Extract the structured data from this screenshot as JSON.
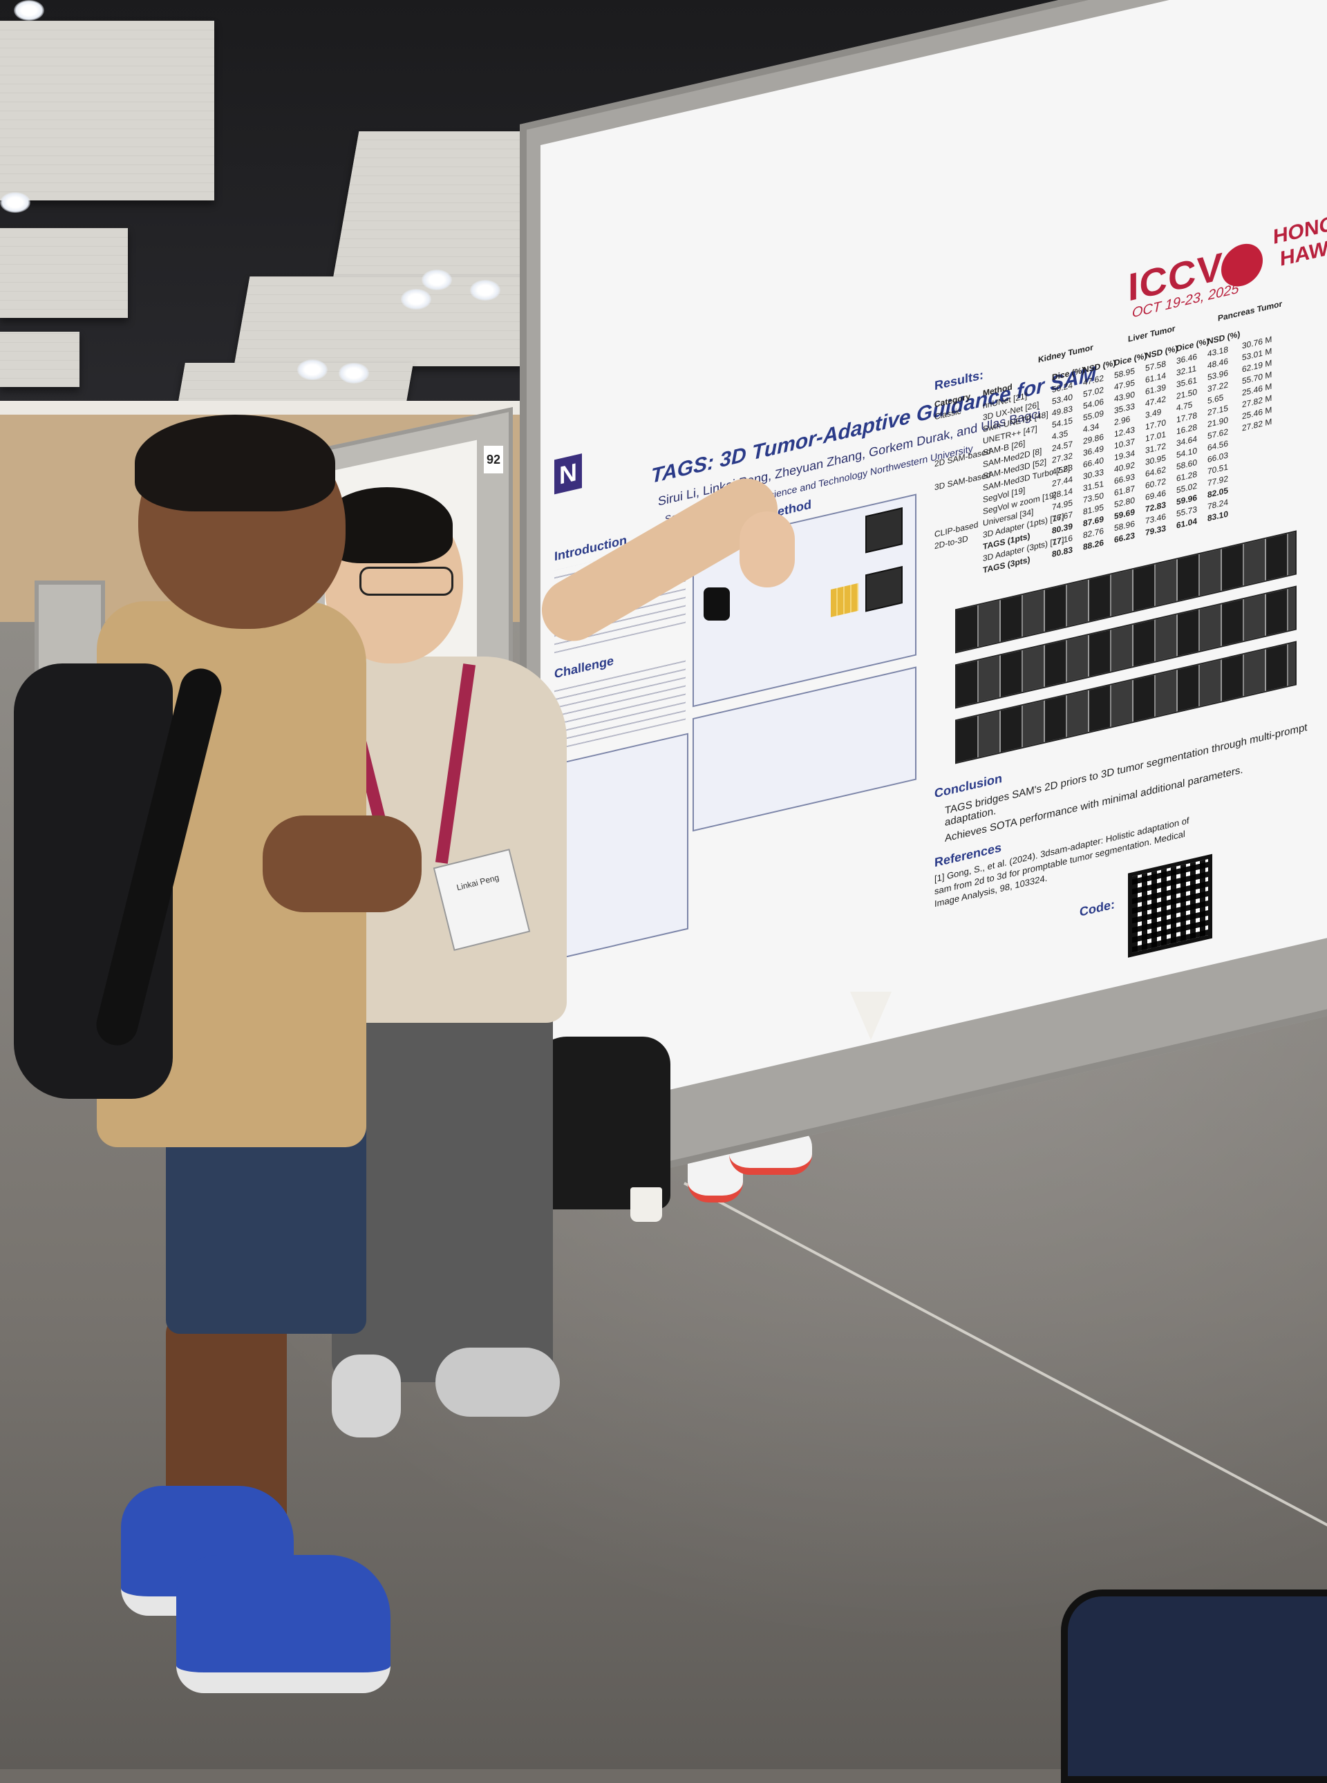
{
  "poster": {
    "title": "TAGS: 3D Tumor-Adaptive Guidance for SAM",
    "authors": "Sirui Li, Linkai Peng, Zheyuan Zhang, Gorkem Durak, and Ulas Bagci",
    "affiliation": "Southern University of Science and Technology  Northwestern University",
    "conference": {
      "logo": "ICCV",
      "dates": "OCT 19-23, 2025",
      "city_line1": "HONOLULU",
      "city_line2": "HAWAII"
    },
    "sections": {
      "introduction": "Introduction",
      "challenge": "Challenge",
      "proposed_method": "Proposed Method",
      "results": "Results:",
      "conclusion": "Conclusion",
      "references": "References",
      "code": "Code:"
    },
    "table": {
      "group_headers": [
        "Kidney Tumor",
        "Liver Tumor",
        "Pancreas Tumor"
      ],
      "columns": [
        "Category",
        "Method",
        "Dice (%)",
        "NSD (%)",
        "Dice (%)",
        "NSD (%)",
        "Dice (%)",
        "NSD (%)"
      ],
      "rows": [
        [
          "Classic",
          "nnUNet [21]",
          "50.24",
          "47.62",
          "58.95",
          "57.58",
          "36.46",
          "43.18"
        ],
        [
          "",
          "3D UX-Net [26]",
          "53.40",
          "57.02",
          "47.95",
          "61.14",
          "32.11",
          "48.46"
        ],
        [
          "",
          "Swin-UNETR [48]",
          "49.83",
          "54.06",
          "43.90",
          "61.39",
          "35.61",
          "53.96"
        ],
        [
          "",
          "UNETR++ [47]",
          "54.15",
          "55.09",
          "35.33",
          "47.42",
          "21.50",
          "37.22"
        ],
        [
          "2D SAM-based",
          "SAM-B [26]",
          "4.35",
          "4.34",
          "2.96",
          "3.49",
          "4.75",
          "5.65"
        ],
        [
          "",
          "SAM-Med2D [8]",
          "24.57",
          "29.86",
          "12.43",
          "17.70",
          "17.78",
          "27.15"
        ],
        [
          "3D SAM-based",
          "SAM-Med3D [52]",
          "27.32",
          "36.49",
          "10.37",
          "17.01",
          "16.28",
          "21.90"
        ],
        [
          "",
          "SAM-Med3D Turbo [52]",
          "47.83",
          "66.40",
          "19.34",
          "31.72",
          "34.64",
          "57.62"
        ],
        [
          "",
          "SegVol [19]",
          "27.44",
          "30.33",
          "40.92",
          "30.95",
          "54.10",
          "64.56"
        ],
        [
          "",
          "SegVol w zoom [19]",
          "28.14",
          "31.51",
          "66.93",
          "64.62",
          "58.60",
          "66.03"
        ],
        [
          "CLIP-based",
          "Universal [34]",
          "74.95",
          "73.50",
          "61.87",
          "60.72",
          "61.28",
          "70.51"
        ],
        [
          "2D-to-3D",
          "3D Adapter (1pts) [17]",
          "76.67",
          "81.95",
          "52.80",
          "69.46",
          "55.02",
          "77.92"
        ],
        [
          "",
          "TAGS (1pts)",
          "80.39",
          "87.69",
          "59.69",
          "72.83",
          "59.96",
          "82.05"
        ],
        [
          "",
          "3D Adapter (3pts) [17]",
          "77.16",
          "82.76",
          "58.96",
          "73.46",
          "55.73",
          "78.24"
        ],
        [
          "",
          "TAGS (3pts)",
          "80.83",
          "88.26",
          "66.23",
          "79.33",
          "61.04",
          "83.10"
        ]
      ],
      "params": [
        "30.76 M",
        "53.01 M",
        "62.19 M",
        "55.70 M",
        "25.46 M",
        "27.82 M",
        "25.46 M",
        "27.82 M"
      ]
    },
    "conclusion_text": [
      "TAGS bridges SAM's 2D priors to 3D tumor segmentation through multi-prompt adaptation.",
      "Achieves SOTA performance with minimal additional parameters."
    ],
    "reference_text": "[1] Gong, S., et al. (2024). 3dsam-adapter: Holistic adaptation of sam from 2d to 3d for promptable tumor segmentation. Medical Image Analysis, 98, 103324.",
    "board_number": "92"
  },
  "badge": {
    "name": "Linkai Peng"
  }
}
